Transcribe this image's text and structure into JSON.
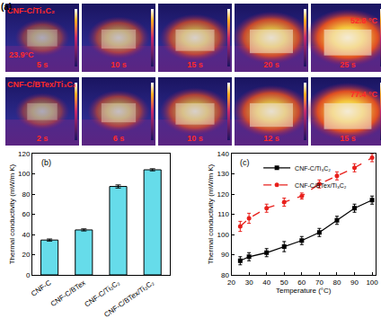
{
  "panel_a": {
    "label": "(a)",
    "rows": [
      {
        "sample": "CNF-C/Ti₃C₂",
        "frames": [
          {
            "time": "5 s",
            "temp": "23.9°C"
          },
          {
            "time": "10 s"
          },
          {
            "time": "15 s"
          },
          {
            "time": "20 s"
          },
          {
            "time": "25 s",
            "temp": "52.8 °C"
          }
        ]
      },
      {
        "sample": "CNF-C/BTex/Ti₃C₂",
        "frames": [
          {
            "time": "2 s"
          },
          {
            "time": "6 s"
          },
          {
            "time": "10 s"
          },
          {
            "time": "12 s"
          },
          {
            "time": "15 s",
            "temp": "77.4 °C"
          }
        ]
      }
    ]
  },
  "chart_data": [
    {
      "type": "bar",
      "title": "(b)",
      "categories": [
        "CNF-C",
        "CNF-C/BTex",
        "CNF-C/Ti₃C₂",
        "CNF-C/BTex/Ti₃C₂"
      ],
      "values": [
        34.5,
        44.5,
        87.5,
        104
      ],
      "errors": [
        1,
        1,
        1.5,
        1
      ],
      "color": "#66dcea",
      "y_label": "Thermal conductivity (mW/m K)",
      "ylim": [
        0,
        120
      ],
      "yticks": [
        0,
        20,
        40,
        60,
        80,
        100,
        120
      ]
    },
    {
      "type": "line",
      "title": "(c)",
      "x": [
        25,
        30,
        40,
        50,
        60,
        70,
        80,
        90,
        100
      ],
      "series": [
        {
          "name": "CNF-C/Ti₃C₂",
          "color": "#000000",
          "marker": "square",
          "line_style": "solid",
          "values": [
            87,
            89,
            91,
            94,
            97,
            101,
            107,
            113,
            117
          ],
          "errors": [
            2,
            2,
            2,
            2.5,
            2,
            2,
            2,
            2,
            2
          ]
        },
        {
          "name": "CNF-C/BTex/Ti₃C₂",
          "color": "#e8201c",
          "marker": "circle",
          "line_style": "dash",
          "values": [
            104,
            108,
            113,
            116,
            119,
            125,
            129,
            133,
            138
          ],
          "errors": [
            2.5,
            2.5,
            2,
            2,
            1.5,
            2,
            2,
            2,
            2
          ]
        }
      ],
      "x_label": "Temperature (°C)",
      "y_label": "Thermal conductivity (mW/m K)",
      "xlim": [
        20,
        102
      ],
      "xticks": [
        20,
        30,
        40,
        50,
        60,
        70,
        80,
        90,
        100
      ],
      "ylim": [
        80,
        140
      ],
      "yticks": [
        80,
        90,
        100,
        110,
        120,
        130,
        140
      ],
      "legend": "upper left"
    }
  ]
}
